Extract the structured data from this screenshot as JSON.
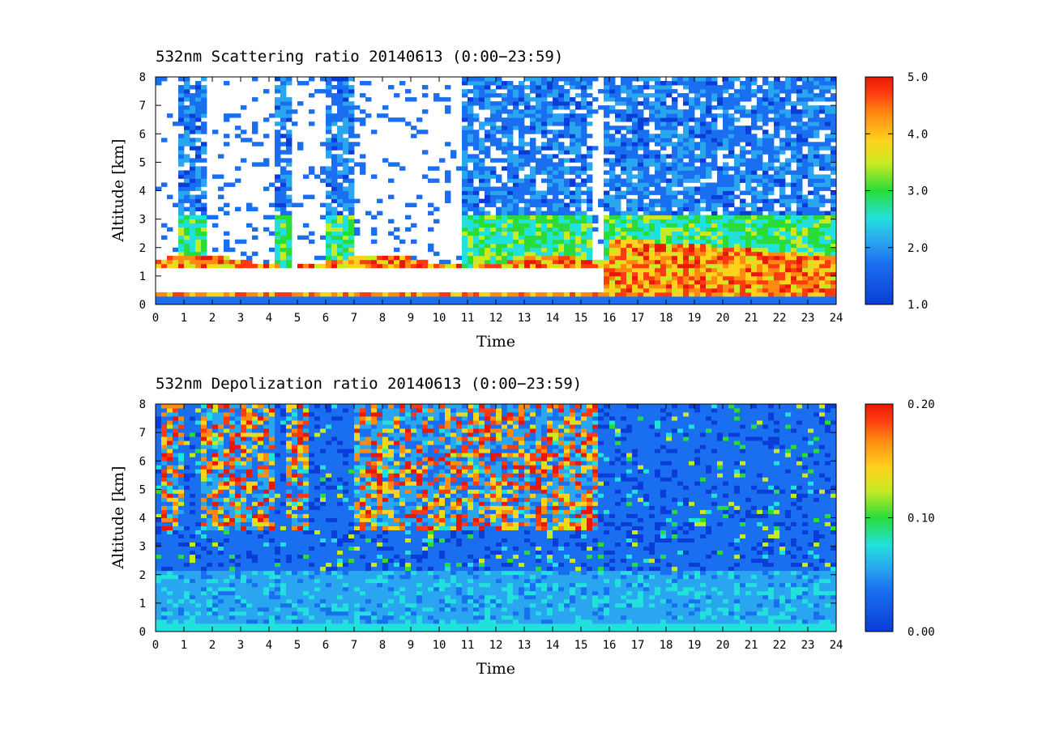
{
  "chart_data": [
    {
      "type": "heatmap",
      "title": "532nm Scattering ratio  20140613 (0:00−23:59)",
      "xlabel": "Time",
      "ylabel": "Altitude [km]",
      "xlim": [
        0,
        24
      ],
      "ylim": [
        0,
        8
      ],
      "x_ticks": [
        "0",
        "1",
        "2",
        "3",
        "4",
        "5",
        "6",
        "7",
        "8",
        "9",
        "10",
        "11",
        "12",
        "13",
        "14",
        "15",
        "16",
        "17",
        "18",
        "19",
        "20",
        "21",
        "22",
        "23",
        "24"
      ],
      "y_ticks": [
        "0",
        "1",
        "2",
        "3",
        "4",
        "5",
        "6",
        "7",
        "8"
      ],
      "colorbar": {
        "min": 1.0,
        "max": 5.0,
        "ticks": [
          "1.0",
          "2.0",
          "3.0",
          "4.0",
          "5.0"
        ]
      },
      "features": {
        "cloud_base_km": 1.3,
        "boundary_layer_top_km": [
          1.2,
          2.0
        ],
        "near_ground_band_km": 0.35
      }
    },
    {
      "type": "heatmap",
      "title": "532nm Depolization ratio  20140613 (0:00−23:59)",
      "xlabel": "Time",
      "ylabel": "Altitude [km]",
      "xlim": [
        0,
        24
      ],
      "ylim": [
        0,
        8
      ],
      "x_ticks": [
        "0",
        "1",
        "2",
        "3",
        "4",
        "5",
        "6",
        "7",
        "8",
        "9",
        "10",
        "11",
        "12",
        "13",
        "14",
        "15",
        "16",
        "17",
        "18",
        "19",
        "20",
        "21",
        "22",
        "23",
        "24"
      ],
      "y_ticks": [
        "0",
        "1",
        "2",
        "3",
        "4",
        "5",
        "6",
        "7",
        "8"
      ],
      "colorbar": {
        "min": 0.0,
        "max": 0.2,
        "ticks": [
          "0.00",
          "0.10",
          "0.20"
        ]
      },
      "features": {
        "high_depol_hours": [
          [
            0.2,
            1.0
          ],
          [
            1.6,
            4.2
          ],
          [
            4.7,
            5.4
          ],
          [
            7.1,
            15.6
          ]
        ],
        "high_depol_altitude_km": [
          3.5,
          8.0
        ]
      }
    }
  ],
  "colormap": [
    "#0a3dd8",
    "#1a6ff0",
    "#2aa6f0",
    "#22e0dc",
    "#2adc3a",
    "#c8ea22",
    "#ffd21c",
    "#ff8a12",
    "#ff3a10",
    "#e81808"
  ]
}
